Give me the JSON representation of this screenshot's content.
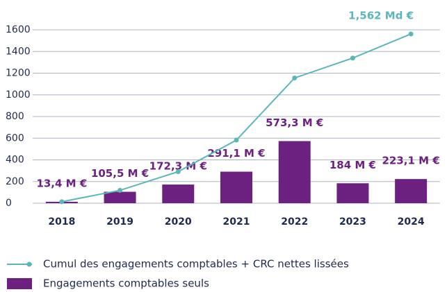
{
  "chart_data": {
    "type": "bar_line",
    "categories": [
      "2018",
      "2019",
      "2020",
      "2021",
      "2022",
      "2023",
      "2024"
    ],
    "series": [
      {
        "name": "Cumul des engagements comptables + CRC nettes lissées",
        "type": "line",
        "color": "#5bb7b7",
        "values": [
          13.4,
          118.9,
          291.2,
          582.3,
          1155.6,
          1339.6,
          1562
        ],
        "value_labels": [
          null,
          null,
          null,
          null,
          null,
          null,
          "1,562 Md €"
        ]
      },
      {
        "name": "Engagements comptables seuls",
        "type": "bar",
        "color": "#6c2180",
        "values": [
          13.4,
          105.5,
          172.3,
          291.1,
          573.3,
          184,
          223.1
        ],
        "value_labels": [
          "13,4 M €",
          "105,5 M €",
          "172,3 M €",
          "291,1 M €",
          "573,3 M €",
          "184 M €",
          "223,1 M €"
        ]
      }
    ],
    "ylim": [
      0,
      1600
    ],
    "yticks": [
      0,
      200,
      400,
      600,
      800,
      1000,
      1200,
      1400,
      1600
    ],
    "grid": true
  }
}
